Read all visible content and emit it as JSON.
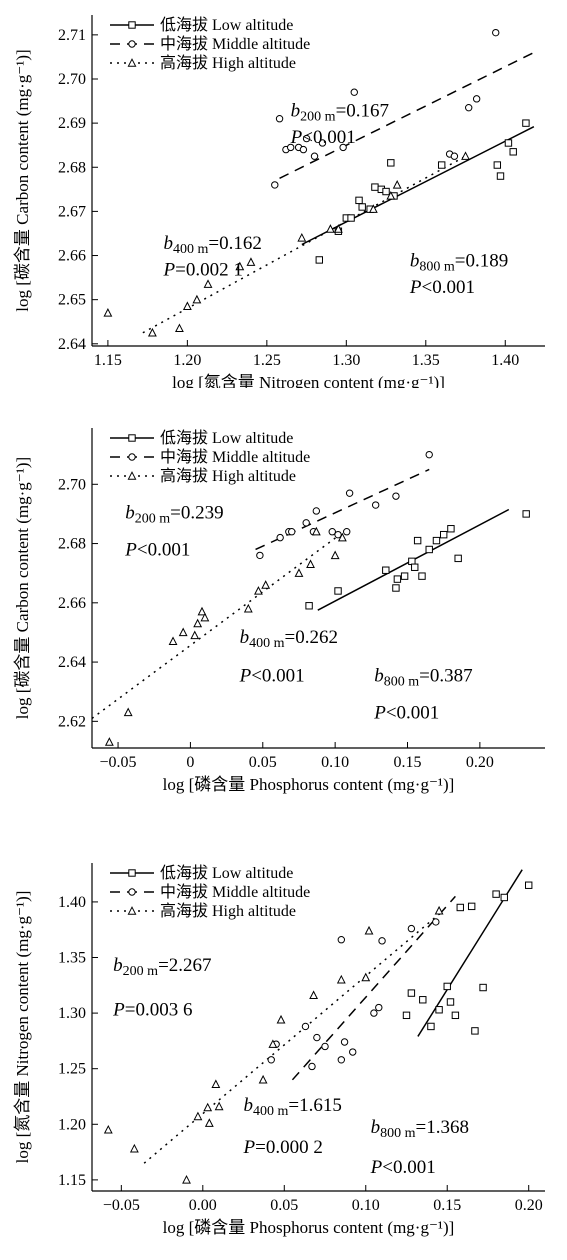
{
  "chart_data": [
    {
      "type": "scatter",
      "xlabel": "log [氮含量 Nitrogen content (mg·g⁻¹)]",
      "ylabel": "log [碳含量 Carbon content (mg·g⁻¹)]",
      "xlim": [
        1.14,
        1.425
      ],
      "ylim": [
        2.6395,
        2.7145
      ],
      "xticks": [
        "1.15",
        "1.20",
        "1.25",
        "1.30",
        "1.35",
        "1.40"
      ],
      "xtick_values": [
        1.15,
        1.2,
        1.25,
        1.3,
        1.35,
        1.4
      ],
      "yticks": [
        "2.64",
        "2.65",
        "2.66",
        "2.67",
        "2.68",
        "2.69",
        "2.70",
        "2.71"
      ],
      "ytick_values": [
        2.64,
        2.65,
        2.66,
        2.67,
        2.68,
        2.69,
        2.7,
        2.71
      ],
      "legend": [
        "低海拔 Low altitude",
        "中海拔 Middle altitude",
        "高海拔 High altitude"
      ],
      "annotations": [
        {
          "label": "b",
          "sub": "200 m",
          "value": "=0.167",
          "p": "<0.001",
          "x": 1.265,
          "y": 2.6915,
          "py": 2.6855
        },
        {
          "label": "b",
          "sub": "400 m",
          "value": "=0.162",
          "p": "=0.002 1",
          "x": 1.185,
          "y": 2.6615,
          "py": 2.6555
        },
        {
          "label": "b",
          "sub": "800 m",
          "value": "=0.189",
          "p": "<0.001",
          "x": 1.34,
          "y": 2.6575,
          "py": 2.6515
        }
      ],
      "series": [
        {
          "name": "低海拔 Low altitude",
          "marker": "square",
          "dash": "solid",
          "points": [
            [
              1.283,
              2.659
            ],
            [
              1.295,
              2.6655
            ],
            [
              1.3,
              2.6685
            ],
            [
              1.303,
              2.6685
            ],
            [
              1.308,
              2.6725
            ],
            [
              1.31,
              2.671
            ],
            [
              1.315,
              2.6705
            ],
            [
              1.318,
              2.6755
            ],
            [
              1.322,
              2.675
            ],
            [
              1.325,
              2.6745
            ],
            [
              1.328,
              2.681
            ],
            [
              1.33,
              2.6735
            ],
            [
              1.36,
              2.6805
            ],
            [
              1.395,
              2.6805
            ],
            [
              1.397,
              2.678
            ],
            [
              1.402,
              2.6855
            ],
            [
              1.405,
              2.6835
            ],
            [
              1.413,
              2.69
            ]
          ],
          "fit": [
            [
              1.272,
              2.6625
            ],
            [
              1.418,
              2.6892
            ]
          ]
        },
        {
          "name": "中海拔 Middle altitude",
          "marker": "circle",
          "dash": "dashed",
          "points": [
            [
              1.255,
              2.676
            ],
            [
              1.258,
              2.691
            ],
            [
              1.262,
              2.684
            ],
            [
              1.265,
              2.6845
            ],
            [
              1.27,
              2.6845
            ],
            [
              1.273,
              2.684
            ],
            [
              1.275,
              2.6865
            ],
            [
              1.28,
              2.6825
            ],
            [
              1.285,
              2.6855
            ],
            [
              1.298,
              2.6845
            ],
            [
              1.305,
              2.697
            ],
            [
              1.365,
              2.683
            ],
            [
              1.368,
              2.6825
            ],
            [
              1.377,
              2.6935
            ],
            [
              1.382,
              2.6955
            ],
            [
              1.394,
              2.7105
            ]
          ],
          "fit": [
            [
              1.258,
              2.6775
            ],
            [
              1.418,
              2.706
            ]
          ]
        },
        {
          "name": "高海拔 High altitude",
          "marker": "triangle",
          "dash": "dotted",
          "points": [
            [
              1.15,
              2.647
            ],
            [
              1.178,
              2.6425
            ],
            [
              1.195,
              2.6435
            ],
            [
              1.2,
              2.6485
            ],
            [
              1.206,
              2.65
            ],
            [
              1.213,
              2.6535
            ],
            [
              1.233,
              2.6575
            ],
            [
              1.24,
              2.6585
            ],
            [
              1.272,
              2.664
            ],
            [
              1.29,
              2.666
            ],
            [
              1.295,
              2.666
            ],
            [
              1.317,
              2.6705
            ],
            [
              1.328,
              2.6735
            ],
            [
              1.332,
              2.676
            ],
            [
              1.375,
              2.6825
            ]
          ],
          "fit": [
            [
              1.172,
              2.6425
            ],
            [
              1.375,
              2.6825
            ]
          ]
        }
      ]
    },
    {
      "type": "scatter",
      "xlabel": "log [磷含量 Phosphorus content (mg·g⁻¹)]",
      "ylabel": "log [碳含量 Carbon content (mg·g⁻¹)]",
      "xlim": [
        -0.068,
        0.245
      ],
      "ylim": [
        2.611,
        2.719
      ],
      "xticks": [
        "−0.05",
        "0",
        "0.05",
        "0.10",
        "0.15",
        "0.20"
      ],
      "xtick_values": [
        -0.05,
        0,
        0.05,
        0.1,
        0.15,
        0.2
      ],
      "yticks": [
        "2.62",
        "2.64",
        "2.66",
        "2.68",
        "2.70"
      ],
      "ytick_values": [
        2.62,
        2.64,
        2.66,
        2.68,
        2.7
      ],
      "legend": [
        "低海拔 Low altitude",
        "中海拔 Middle altitude",
        "高海拔 High altitude"
      ],
      "annotations": [
        {
          "label": "b",
          "sub": "200 m",
          "value": "=0.239",
          "p": "<0.001",
          "x": -0.045,
          "y": 2.6885,
          "py": 2.676
        },
        {
          "label": "b",
          "sub": "400 m",
          "value": "=0.262",
          "p": "<0.001",
          "x": 0.034,
          "y": 2.6465,
          "py": 2.6335
        },
        {
          "label": "b",
          "sub": "800 m",
          "value": "=0.387",
          "p": "<0.001",
          "x": 0.127,
          "y": 2.6335,
          "py": 2.621
        }
      ],
      "series": [
        {
          "name": "低海拔 Low altitude",
          "marker": "square",
          "dash": "solid",
          "points": [
            [
              0.082,
              2.659
            ],
            [
              0.102,
              2.664
            ],
            [
              0.135,
              2.671
            ],
            [
              0.142,
              2.665
            ],
            [
              0.143,
              2.668
            ],
            [
              0.148,
              2.669
            ],
            [
              0.153,
              2.674
            ],
            [
              0.155,
              2.672
            ],
            [
              0.157,
              2.681
            ],
            [
              0.16,
              2.669
            ],
            [
              0.165,
              2.678
            ],
            [
              0.17,
              2.681
            ],
            [
              0.175,
              2.683
            ],
            [
              0.18,
              2.685
            ],
            [
              0.185,
              2.675
            ],
            [
              0.232,
              2.69
            ]
          ],
          "fit": [
            [
              0.088,
              2.6575
            ],
            [
              0.22,
              2.6915
            ]
          ]
        },
        {
          "name": "中海拔 Middle altitude",
          "marker": "circle",
          "dash": "dashed",
          "points": [
            [
              0.048,
              2.676
            ],
            [
              0.062,
              2.682
            ],
            [
              0.068,
              2.684
            ],
            [
              0.07,
              2.684
            ],
            [
              0.08,
              2.687
            ],
            [
              0.085,
              2.684
            ],
            [
              0.087,
              2.691
            ],
            [
              0.098,
              2.684
            ],
            [
              0.102,
              2.683
            ],
            [
              0.108,
              2.684
            ],
            [
              0.11,
              2.697
            ],
            [
              0.128,
              2.693
            ],
            [
              0.142,
              2.696
            ],
            [
              0.165,
              2.71
            ]
          ],
          "fit": [
            [
              0.045,
              2.678
            ],
            [
              0.165,
              2.705
            ]
          ]
        },
        {
          "name": "高海拔 High altitude",
          "marker": "triangle",
          "dash": "dotted",
          "points": [
            [
              -0.056,
              2.613
            ],
            [
              -0.043,
              2.623
            ],
            [
              -0.012,
              2.647
            ],
            [
              -0.005,
              2.65
            ],
            [
              0.003,
              2.649
            ],
            [
              0.005,
              2.653
            ],
            [
              0.008,
              2.657
            ],
            [
              0.01,
              2.655
            ],
            [
              0.04,
              2.658
            ],
            [
              0.047,
              2.664
            ],
            [
              0.052,
              2.666
            ],
            [
              0.075,
              2.67
            ],
            [
              0.083,
              2.673
            ],
            [
              0.087,
              2.684
            ],
            [
              0.1,
              2.676
            ],
            [
              0.105,
              2.682
            ]
          ],
          "fit": [
            [
              -0.068,
              2.621
            ],
            [
              0.106,
              2.684
            ]
          ]
        }
      ]
    },
    {
      "type": "scatter",
      "xlabel": "log [磷含量 Phosphorus content (mg·g⁻¹)]",
      "ylabel": "log [氮含量 Nitrogen content (mg·g⁻¹)]",
      "xlim": [
        -0.068,
        0.21
      ],
      "ylim": [
        1.14,
        1.435
      ],
      "xticks": [
        "−0.05",
        "0.00",
        "0.05",
        "0.10",
        "0.15",
        "0.20"
      ],
      "xtick_values": [
        -0.05,
        0.0,
        0.05,
        0.1,
        0.15,
        0.2
      ],
      "yticks": [
        "1.15",
        "1.20",
        "1.25",
        "1.30",
        "1.35",
        "1.40"
      ],
      "ytick_values": [
        1.15,
        1.2,
        1.25,
        1.3,
        1.35,
        1.4
      ],
      "legend": [
        "低海拔 Low altitude",
        "中海拔 Middle altitude",
        "高海拔 High altitude"
      ],
      "annotations": [
        {
          "label": "b",
          "sub": "200 m",
          "value": "=2.267",
          "p": "=0.003 6",
          "x": -0.055,
          "y": 1.338,
          "py": 1.298
        },
        {
          "label": "b",
          "sub": "400 m",
          "value": "=1.615",
          "p": "=0.000 2",
          "x": 0.025,
          "y": 1.212,
          "py": 1.174
        },
        {
          "label": "b",
          "sub": "800 m",
          "value": "=1.368",
          "p": "<0.001",
          "x": 0.103,
          "y": 1.192,
          "py": 1.156
        }
      ],
      "series": [
        {
          "name": "低海拔 Low altitude",
          "marker": "square",
          "dash": "solid",
          "points": [
            [
              0.125,
              1.298
            ],
            [
              0.128,
              1.318
            ],
            [
              0.135,
              1.312
            ],
            [
              0.14,
              1.288
            ],
            [
              0.145,
              1.303
            ],
            [
              0.15,
              1.324
            ],
            [
              0.152,
              1.31
            ],
            [
              0.155,
              1.298
            ],
            [
              0.158,
              1.395
            ],
            [
              0.165,
              1.396
            ],
            [
              0.167,
              1.284
            ],
            [
              0.172,
              1.323
            ],
            [
              0.18,
              1.407
            ],
            [
              0.185,
              1.404
            ],
            [
              0.2,
              1.415
            ]
          ],
          "fit": [
            [
              0.132,
              1.279
            ],
            [
              0.196,
              1.429
            ]
          ]
        },
        {
          "name": "中海拔 Middle altitude",
          "marker": "circle",
          "dash": "dashed",
          "points": [
            [
              0.042,
              1.258
            ],
            [
              0.045,
              1.272
            ],
            [
              0.063,
              1.288
            ],
            [
              0.067,
              1.252
            ],
            [
              0.07,
              1.278
            ],
            [
              0.075,
              1.27
            ],
            [
              0.085,
              1.258
            ],
            [
              0.087,
              1.274
            ],
            [
              0.085,
              1.366
            ],
            [
              0.092,
              1.265
            ],
            [
              0.105,
              1.3
            ],
            [
              0.108,
              1.305
            ],
            [
              0.11,
              1.365
            ],
            [
              0.128,
              1.376
            ],
            [
              0.143,
              1.382
            ]
          ],
          "fit": [
            [
              0.055,
              1.24
            ],
            [
              0.155,
              1.405
            ]
          ]
        },
        {
          "name": "高海拔 High altitude",
          "marker": "triangle",
          "dash": "dotted",
          "points": [
            [
              -0.058,
              1.195
            ],
            [
              -0.042,
              1.178
            ],
            [
              -0.01,
              1.15
            ],
            [
              -0.003,
              1.207
            ],
            [
              0.003,
              1.215
            ],
            [
              0.004,
              1.201
            ],
            [
              0.008,
              1.236
            ],
            [
              0.01,
              1.216
            ],
            [
              0.037,
              1.24
            ],
            [
              0.043,
              1.272
            ],
            [
              0.048,
              1.294
            ],
            [
              0.068,
              1.316
            ],
            [
              0.085,
              1.33
            ],
            [
              0.1,
              1.332
            ],
            [
              0.102,
              1.374
            ],
            [
              0.145,
              1.392
            ]
          ],
          "fit": [
            [
              -0.036,
              1.165
            ],
            [
              0.145,
              1.389
            ]
          ]
        }
      ]
    }
  ]
}
